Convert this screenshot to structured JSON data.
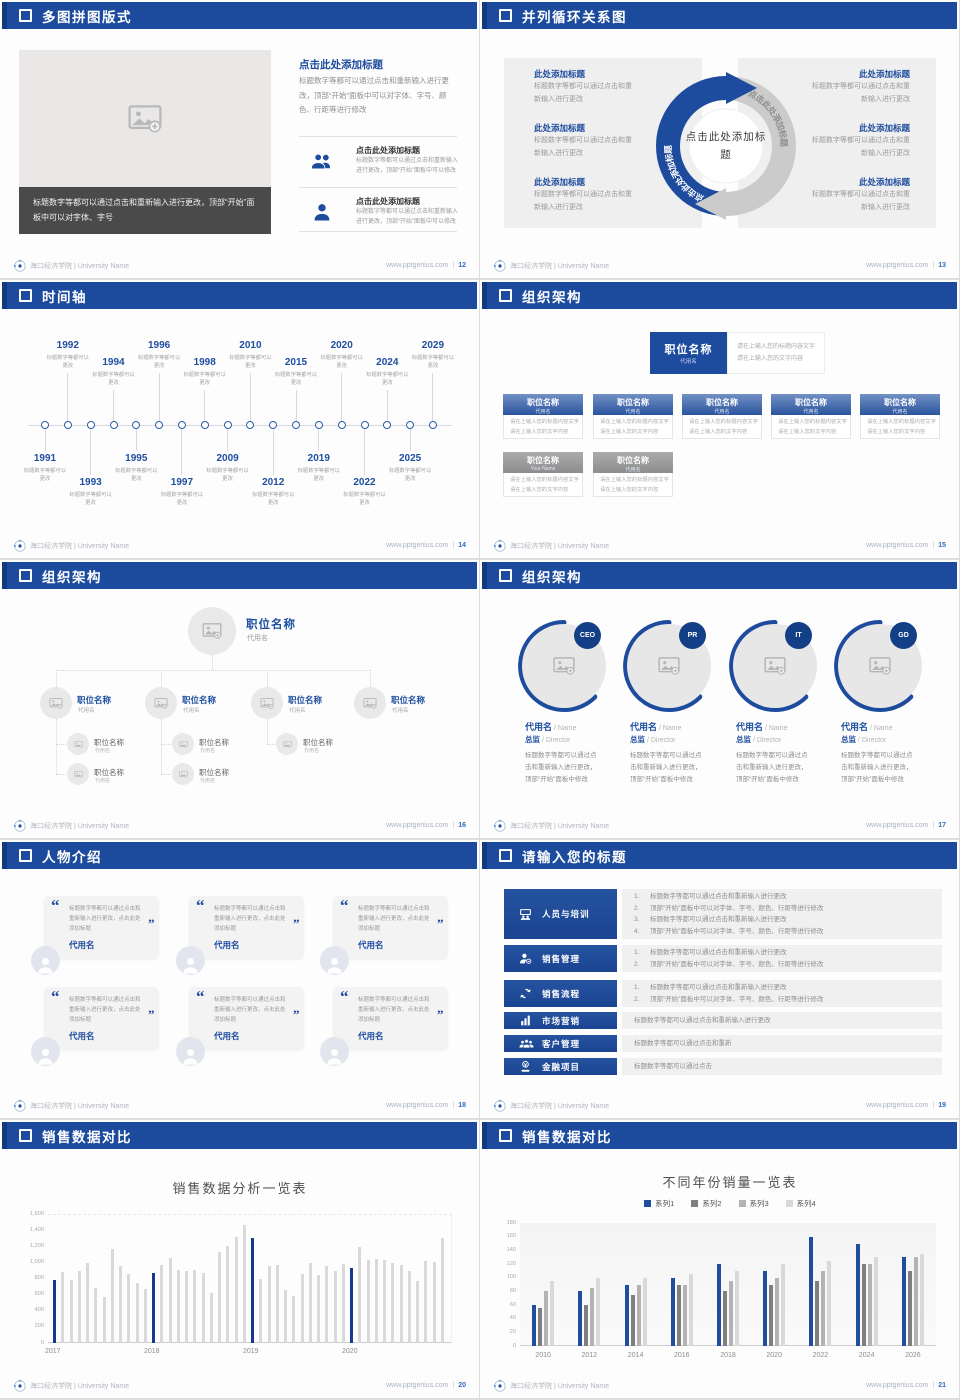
{
  "footer": {
    "org": "海口经济学院 | University Name",
    "site": "www.pptgenius.com",
    "sep": "|"
  },
  "theme": {
    "header_blue": "#1c4b9e",
    "accent_blue": "#1d4b9e",
    "navy_bar": "#16388e",
    "panel_gray": "#efefef",
    "caption_dark": "#4a4a4a"
  },
  "slides": {
    "s12": {
      "title": "多图拼图版式",
      "page": "12",
      "image_caption": "标题数字等都可以通过点击和重新输入进行更改，顶部“开始”面板中可以对字体、字号",
      "right": {
        "title": "点击此处添加标题",
        "body": "标题数字等都可以通过点击和重新输入进行更改，顶部“开始”面板中可以对字体、字号、颜色、行距等进行修改",
        "items": [
          {
            "icon": "people-icon",
            "title": "点击此处添加标题",
            "text": "标题数字等都可以通过点击和重新输入进行更改，顶部“开始”面板中可以修改"
          },
          {
            "icon": "person-icon",
            "title": "点击此处添加标题",
            "text": "标题数字等都可以通过点击和重新输入进行更改，顶部“开始”面板中可以修改"
          }
        ]
      }
    },
    "s13": {
      "title": "并列循环关系图",
      "page": "13",
      "center_label": "点击此处添加标题",
      "arc_label": "点击此处添加标题",
      "left_items": [
        {
          "title": "此处添加标题",
          "text": "标题数字等都可以通过点击和重新输入进行更改"
        },
        {
          "title": "此处添加标题",
          "text": "标题数字等都可以通过点击和重新输入进行更改"
        },
        {
          "title": "此处添加标题",
          "text": "标题数字等都可以通过点击和重新输入进行更改"
        }
      ],
      "right_items": [
        {
          "title": "此处添加标题",
          "text": "标题数字等都可以通过点击和重新输入进行更改"
        },
        {
          "title": "此处添加标题",
          "text": "标题数字等都可以通过点击和重新输入进行更改"
        },
        {
          "title": "此处添加标题",
          "text": "标题数字等都可以通过点击和重新输入进行更改"
        }
      ]
    },
    "s14": {
      "title": "时间轴",
      "page": "14",
      "item_text": "标题数字等都可以更改",
      "events": [
        {
          "year": "1991",
          "side": "below",
          "len": "tall"
        },
        {
          "year": "1992",
          "side": "above",
          "len": "tall"
        },
        {
          "year": "1993",
          "side": "below",
          "len": "short"
        },
        {
          "year": "1994",
          "side": "above",
          "len": "short"
        },
        {
          "year": "1995",
          "side": "below",
          "len": "tall"
        },
        {
          "year": "1996",
          "side": "above",
          "len": "tall"
        },
        {
          "year": "1997",
          "side": "below",
          "len": "short"
        },
        {
          "year": "1998",
          "side": "above",
          "len": "short"
        },
        {
          "year": "2009",
          "side": "below",
          "len": "tall"
        },
        {
          "year": "2010",
          "side": "above",
          "len": "tall"
        },
        {
          "year": "2012",
          "side": "below",
          "len": "short"
        },
        {
          "year": "2015",
          "side": "above",
          "len": "short"
        },
        {
          "year": "2019",
          "side": "below",
          "len": "tall"
        },
        {
          "year": "2020",
          "side": "above",
          "len": "tall"
        },
        {
          "year": "2022",
          "side": "below",
          "len": "short"
        },
        {
          "year": "2024",
          "side": "above",
          "len": "short"
        },
        {
          "year": "2025",
          "side": "below",
          "len": "tall"
        },
        {
          "year": "2029",
          "side": "above",
          "len": "tall"
        }
      ]
    },
    "s15": {
      "title": "组织架构",
      "page": "15",
      "root": {
        "name": "职位名称",
        "sub": "代用名"
      },
      "root_note": [
        "请在上输入您的标题内容文字",
        "请在上输入您的文字内容"
      ],
      "box_note": [
        "请在上输入您的标题内容文字",
        "请在上输入您的文字内容"
      ],
      "row1": [
        {
          "name": "职位名称",
          "sub": "代用名"
        },
        {
          "name": "职位名称",
          "sub": "代用名"
        },
        {
          "name": "职位名称",
          "sub": "代用名"
        },
        {
          "name": "职位名称",
          "sub": "代用名"
        },
        {
          "name": "职位名称",
          "sub": "代用名"
        }
      ],
      "row2": [
        {
          "name": "职位名称",
          "sub": "Your Name"
        },
        {
          "name": "职位名称",
          "sub": "代用名"
        }
      ]
    },
    "s16": {
      "title": "组织架构",
      "page": "16",
      "root": {
        "name": "职位名称",
        "sub": "代用名"
      },
      "level2": [
        {
          "name": "职位名称",
          "sub": "代用名"
        },
        {
          "name": "职位名称",
          "sub": "代用名"
        },
        {
          "name": "职位名称",
          "sub": "代用名"
        },
        {
          "name": "职位名称",
          "sub": "代用名"
        }
      ],
      "level3": [
        {
          "name": "职位名称",
          "sub": "代用名",
          "parent": 0,
          "row": 0
        },
        {
          "name": "职位名称",
          "sub": "代用名",
          "parent": 0,
          "row": 1
        },
        {
          "name": "职位名称",
          "sub": "代用名",
          "parent": 1,
          "row": 0
        },
        {
          "name": "职位名称",
          "sub": "代用名",
          "parent": 1,
          "row": 1
        },
        {
          "name": "职位名称",
          "sub": "代用名",
          "parent": 2,
          "row": 0
        }
      ]
    },
    "s17": {
      "title": "组织架构",
      "page": "17",
      "profiles": [
        {
          "badge": "CEO",
          "name": "代用名",
          "name_en": "Name",
          "role": "总监",
          "role_en": "Director",
          "text": "标题数字等都可以通过点击和重新输入进行更改，顶部“开始”面板中修改"
        },
        {
          "badge": "PR",
          "name": "代用名",
          "name_en": "Name",
          "role": "总监",
          "role_en": "Director",
          "text": "标题数字等都可以通过点击和重新输入进行更改，顶部“开始”面板中修改"
        },
        {
          "badge": "IT",
          "name": "代用名",
          "name_en": "Name",
          "role": "总监",
          "role_en": "Director",
          "text": "标题数字等都可以通过点击和重新输入进行更改，顶部“开始”面板中修改"
        },
        {
          "badge": "GD",
          "name": "代用名",
          "name_en": "Name",
          "role": "总监",
          "role_en": "Director",
          "text": "标题数字等都可以通过点击和重新输入进行更改，顶部“开始”面板中修改"
        }
      ],
      "sep": " / "
    },
    "s18": {
      "title": "人物介绍",
      "page": "18",
      "quote_open": "“",
      "quote_close": "”",
      "cards": [
        {
          "text": "标题数字等都可以通过点击和重新输入进行更改，点击此处添加标题",
          "name": "代用名"
        },
        {
          "text": "标题数字等都可以通过点击和重新输入进行更改，点击此处添加标题",
          "name": "代用名"
        },
        {
          "text": "标题数字等都可以通过点击和重新输入进行更改，点击此处添加标题",
          "name": "代用名"
        },
        {
          "text": "标题数字等都可以通过点击和重新输入进行更改，点击此处添加标题",
          "name": "代用名"
        },
        {
          "text": "标题数字等都可以通过点击和重新输入进行更改，点击此处添加标题",
          "name": "代用名"
        },
        {
          "text": "标题数字等都可以通过点击和重新输入进行更改，点击此处添加标题",
          "name": "代用名"
        }
      ]
    },
    "s19": {
      "title": "请输入您的标题",
      "page": "19",
      "rows": [
        {
          "icon": "training-icon",
          "label": "人员与培训",
          "numbered": true,
          "lines": [
            "标题数字等都可以通过点击和重新输入进行更改",
            "顶部“开始”面板中可以对字体、字号、颜色、行距等进行修改",
            "标题数字等都可以通过点击和重新输入进行更改",
            "顶部“开始”面板中可以对字体、字号、颜色、行距等进行修改"
          ]
        },
        {
          "icon": "sales-icon",
          "label": "销售管理",
          "numbered": true,
          "lines": [
            "标题数字等都可以通过点击和重新输入进行更改",
            "顶部“开始”面板中可以对字体、字号、颜色、行距等进行修改"
          ]
        },
        {
          "icon": "process-icon",
          "label": "销售流程",
          "numbered": true,
          "lines": [
            "标题数字等都可以通过点击和重新输入进行更改",
            "顶部“开始”面板中可以对字体、字号、颜色、行距等进行修改"
          ]
        },
        {
          "icon": "marketing-icon",
          "label": "市场营销",
          "numbered": false,
          "lines": [
            "标题数字等都可以通过点击和重新输入进行更改"
          ]
        },
        {
          "icon": "customers-icon",
          "label": "客户管理",
          "numbered": false,
          "lines": [
            "标题数字等都可以通过点击和重新"
          ]
        },
        {
          "icon": "finance-icon",
          "label": "金融项目",
          "numbered": false,
          "lines": [
            "标题数字等都可以通过点击"
          ]
        }
      ]
    },
    "s20": {
      "title": "销售数据对比",
      "page": "20"
    },
    "s21": {
      "title": "销售数据对比",
      "page": "21"
    }
  },
  "chart_data": [
    {
      "type": "bar",
      "title": "销售数据分析一览表",
      "categories": [
        "2017",
        "2018",
        "2019",
        "2020"
      ],
      "bar_color": "#d9d9d9",
      "highlight_color": "#16388e",
      "highlight_note": "first bar of each year group is navy blue",
      "ylim": [
        0,
        1600
      ],
      "ytick_labels": [
        "0",
        "200",
        "400",
        "600",
        "800",
        "1,000",
        "1,200",
        "1,400",
        "1,600"
      ],
      "groups": [
        [
          780,
          880,
          780,
          890,
          990,
          680,
          570,
          1170,
          960,
          860,
          740,
          670
        ],
        [
          870,
          970,
          1060,
          900,
          890,
          900,
          870,
          620,
          1130,
          1200,
          1310,
          1460
        ],
        [
          1300,
          800,
          960,
          970,
          660,
          580,
          860,
          990,
          850,
          960,
          890,
          980
        ],
        [
          930,
          1190,
          1030,
          1040,
          1030,
          990,
          970,
          890,
          770,
          1020,
          1000,
          1300
        ]
      ]
    },
    {
      "type": "grouped-bar",
      "title": "不同年份销量一览表",
      "categories": [
        "2010",
        "2012",
        "2014",
        "2016",
        "2018",
        "2020",
        "2022",
        "2024",
        "2026"
      ],
      "ylim": [
        0,
        180
      ],
      "ytick_labels": [
        "0",
        "20",
        "40",
        "60",
        "80",
        "100",
        "120",
        "140",
        "160",
        "180"
      ],
      "legend_position": "top",
      "series": [
        {
          "name": "系列1",
          "color": "#1f4e9e",
          "values": [
            60,
            80,
            90,
            100,
            120,
            110,
            160,
            150,
            130
          ]
        },
        {
          "name": "系列2",
          "color": "#7f7f7f",
          "values": [
            55,
            60,
            75,
            90,
            80,
            90,
            95,
            120,
            110
          ]
        },
        {
          "name": "系列3",
          "color": "#b3b3b3",
          "values": [
            80,
            85,
            90,
            90,
            95,
            100,
            110,
            120,
            130
          ]
        },
        {
          "name": "系列4",
          "color": "#d9d9d9",
          "values": [
            95,
            100,
            100,
            105,
            110,
            120,
            125,
            130,
            135
          ]
        }
      ]
    }
  ]
}
